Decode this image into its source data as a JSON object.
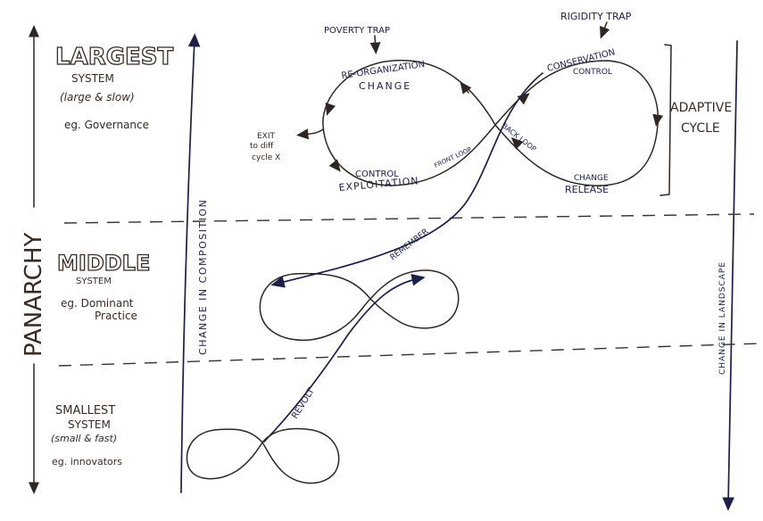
{
  "title": "PANARCHY",
  "levels": {
    "largest": {
      "name": "LARGEST",
      "sub": "SYSTEM",
      "desc": "(large & slow)",
      "example": "eg. Governance"
    },
    "middle": {
      "name": "MIDDLE",
      "sub": "SYSTEM",
      "example1": "eg. Dominant",
      "example2": "Practice"
    },
    "smallest": {
      "name": "SMALLEST",
      "sub": "SYSTEM",
      "desc": "(small & fast)",
      "example": "eg. innovators"
    }
  },
  "axes": {
    "composition": "CHANGE IN COMPOSITION",
    "landscape": "CHANGE IN LANDSCAPE"
  },
  "cycle": {
    "poverty_trap": "POVERTY TRAP",
    "rigidity_trap": "RIGIDITY TRAP",
    "reorganization": "RE-ORGANIZATION",
    "change_top": "CHANGE",
    "control_bottom": "CONTROL",
    "exploitation": "EXPLOITATION",
    "front_loop": "FRONT LOOP",
    "back_loop": "BACK LOOP",
    "conservation": "CONSERVATION",
    "control_top": "CONTROL",
    "change_bottom": "CHANGE",
    "release": "RELEASE",
    "exit1": "EXIT",
    "exit2": "to diff",
    "exit3": "cycle X",
    "adaptive1": "ADAPTIVE",
    "adaptive2": "CYCLE"
  },
  "links": {
    "remember": "REMEMBER",
    "revolt": "REVOLT"
  }
}
